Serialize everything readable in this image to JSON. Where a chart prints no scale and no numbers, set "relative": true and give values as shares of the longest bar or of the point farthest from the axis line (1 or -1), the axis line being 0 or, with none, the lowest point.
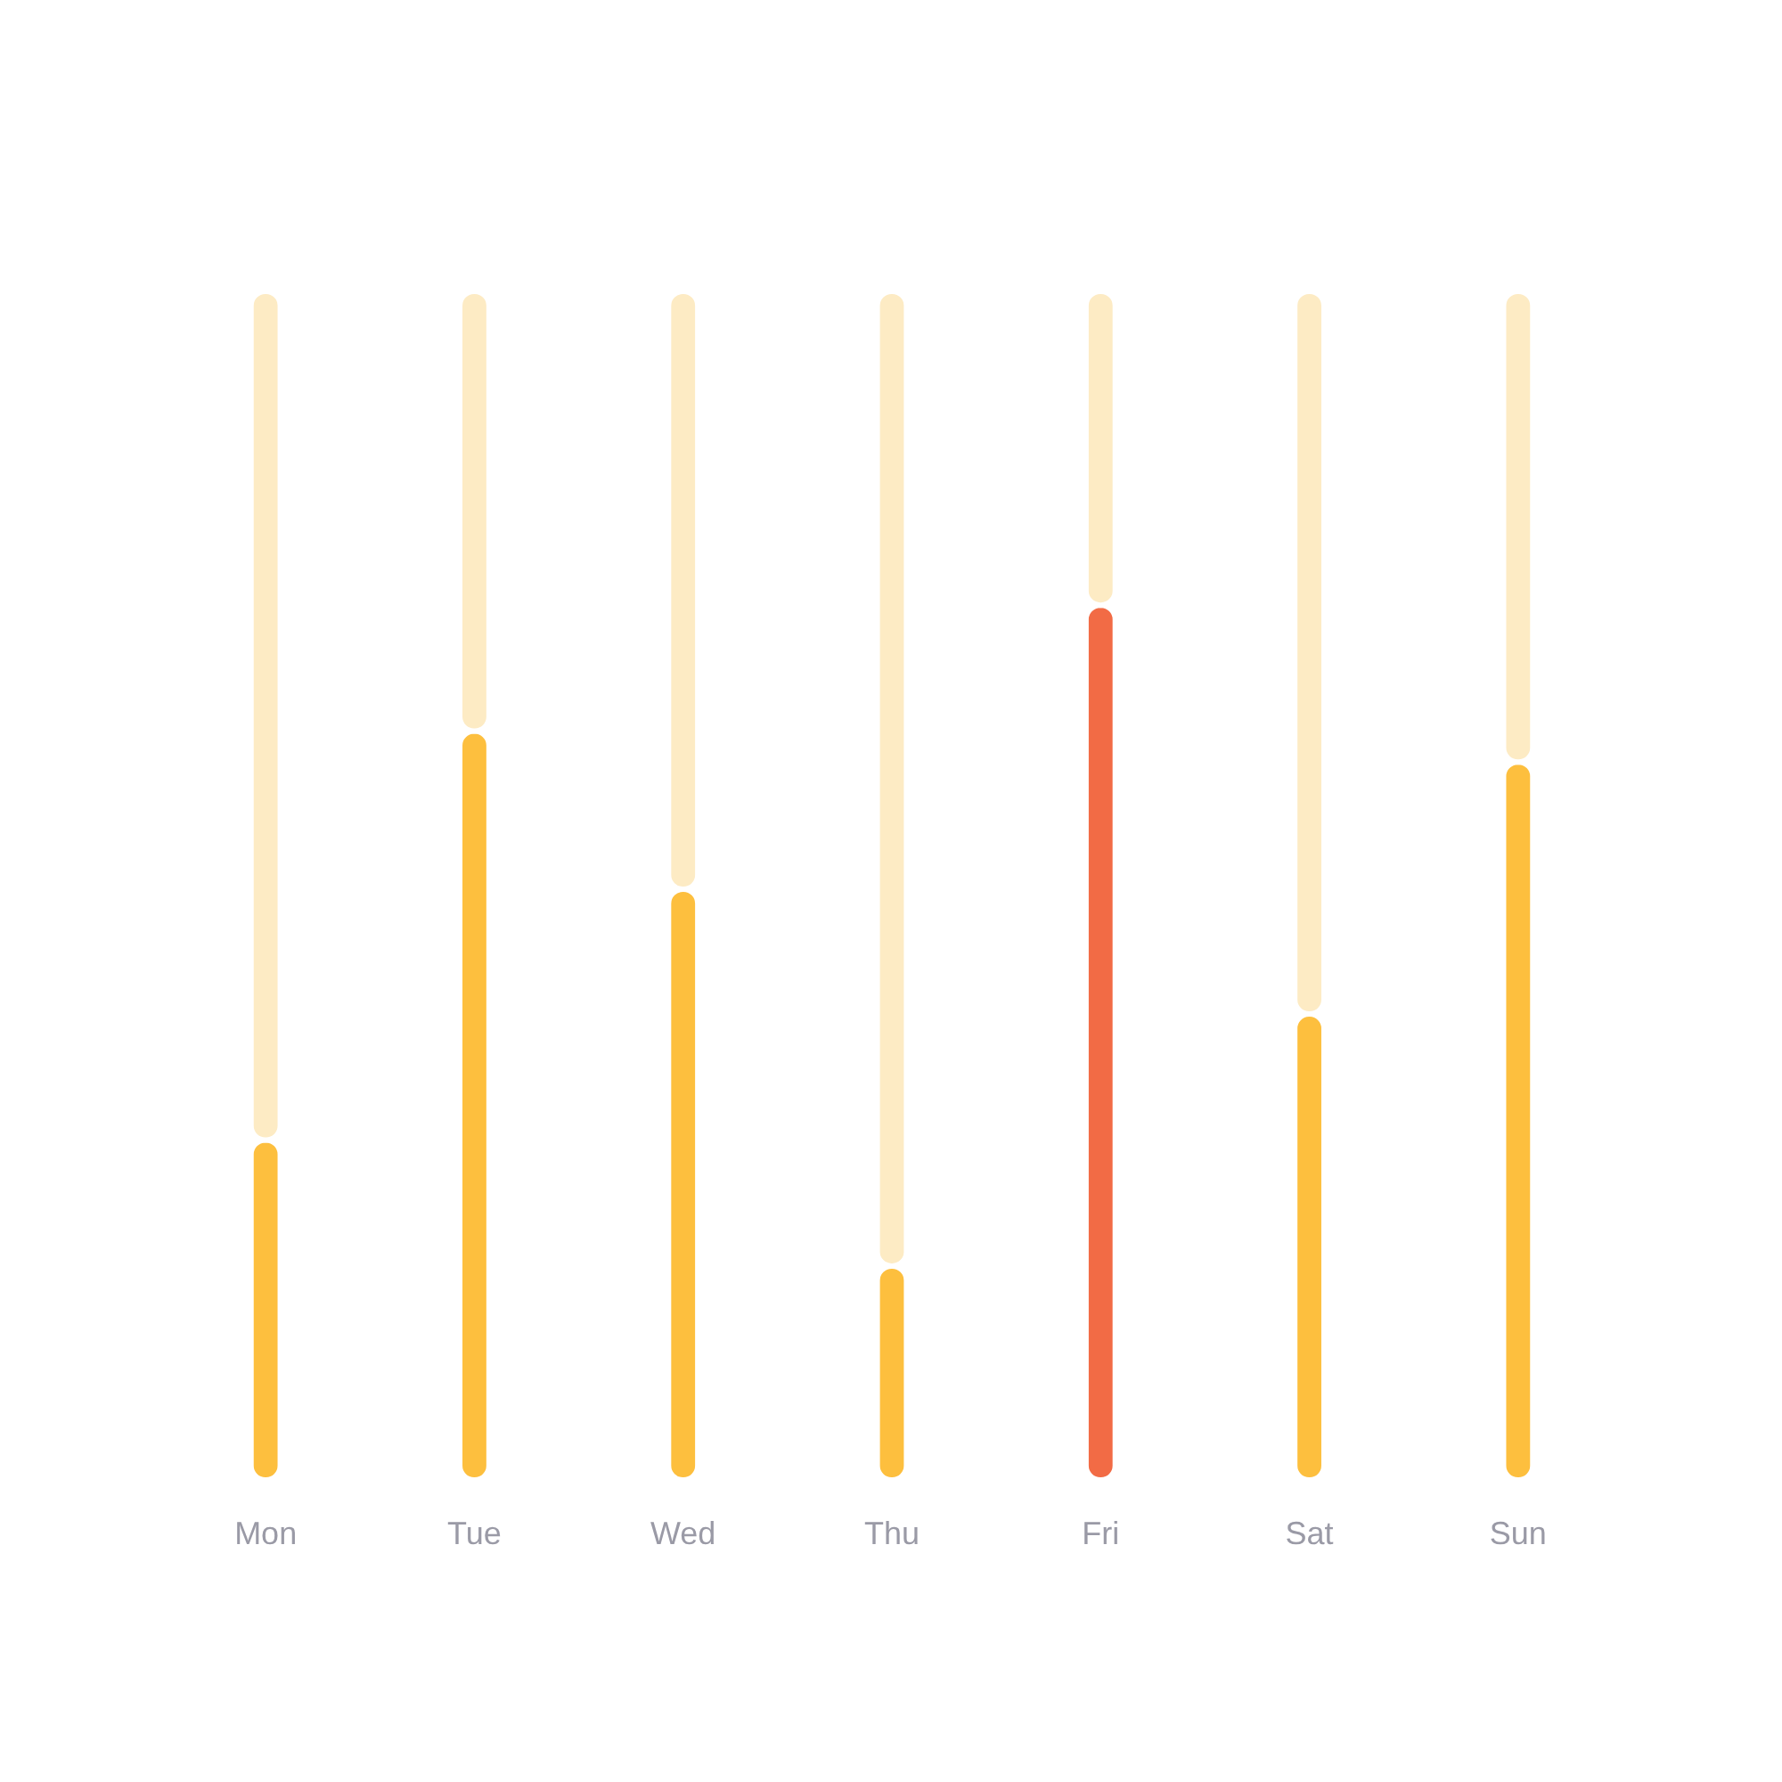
{
  "chart_data": {
    "type": "bar",
    "relative": true,
    "stacked": true,
    "categories": [
      "Mon",
      "Tue",
      "Wed",
      "Thu",
      "Fri",
      "Sat",
      "Sun"
    ],
    "series": [
      {
        "colors": [
          "#fdbf3e",
          "#fdbf3e",
          "#fdbf3e",
          "#fdbf3e",
          "#f26b45",
          "#fdbf3e",
          "#fdbf3e"
        ],
        "values": [
          0.286,
          0.63,
          0.497,
          0.18,
          0.736,
          0.392,
          0.604
        ]
      },
      {
        "color": "#fdebc4",
        "values": [
          0.714,
          0.37,
          0.503,
          0.82,
          0.264,
          0.608,
          0.396
        ]
      }
    ],
    "grid": false
  }
}
